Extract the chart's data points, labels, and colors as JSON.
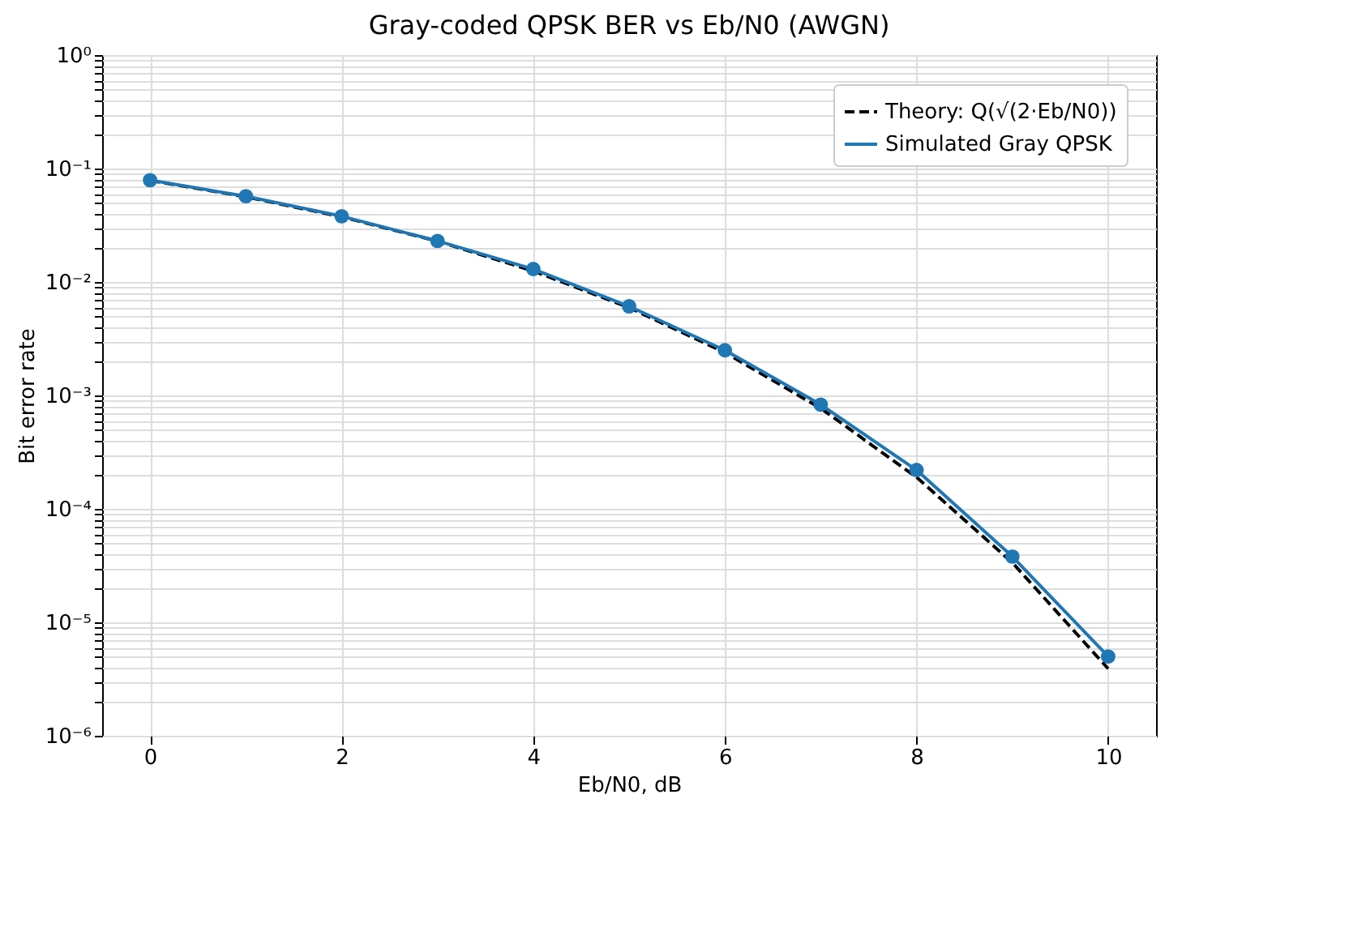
{
  "chart_data": {
    "type": "line",
    "title": "Gray-coded QPSK BER vs Eb/N0 (AWGN)",
    "xlabel": "Eb/N0, dB",
    "ylabel": "Bit error rate",
    "x": [
      0,
      1,
      2,
      3,
      4,
      5,
      6,
      7,
      8,
      9,
      10
    ],
    "series": [
      {
        "name": "Theory: Q(√(2·Eb/N0))",
        "color": "#000000",
        "line_style": "dashed",
        "marker": "none",
        "values": [
          0.0786,
          0.0563,
          0.0375,
          0.0229,
          0.0125,
          0.00595,
          0.00239,
          0.00077,
          0.00019,
          3.36e-05,
          3.9e-06
        ]
      },
      {
        "name": "Simulated Gray QPSK",
        "color": "#1f77b4",
        "line_style": "solid",
        "marker": "circle",
        "values": [
          0.079,
          0.057,
          0.038,
          0.023,
          0.013,
          0.0061,
          0.0025,
          0.00083,
          0.00022,
          3.8e-05,
          5e-06
        ]
      }
    ],
    "log": "y",
    "grid": true,
    "legend": "top right",
    "xlim": [
      -0.5,
      10.5
    ],
    "xticks": [
      0,
      2,
      4,
      6,
      8,
      10
    ],
    "ylim": [
      1e-06,
      1
    ],
    "yticks": [
      {
        "value": 1e-06,
        "label": "10⁻⁶"
      },
      {
        "value": 1e-05,
        "label": "10⁻⁵"
      },
      {
        "value": 0.0001,
        "label": "10⁻⁴"
      },
      {
        "value": 0.001,
        "label": "10⁻³"
      },
      {
        "value": 0.01,
        "label": "10⁻²"
      },
      {
        "value": 0.1,
        "label": "10⁻¹"
      },
      {
        "value": 1,
        "label": "10⁰"
      },
      {
        "value": 2e-06,
        "label": null
      },
      {
        "value": 3e-06,
        "label": null
      },
      {
        "value": 4e-06,
        "label": null
      },
      {
        "value": 5e-06,
        "label": null
      },
      {
        "value": 6e-06,
        "label": null
      },
      {
        "value": 7e-06,
        "label": null
      },
      {
        "value": 8e-06,
        "label": null
      },
      {
        "value": 9e-06,
        "label": null
      },
      {
        "value": 2e-05,
        "label": null
      },
      {
        "value": 3e-05,
        "label": null
      },
      {
        "value": 4e-05,
        "label": null
      },
      {
        "value": 5e-05,
        "label": null
      },
      {
        "value": 6e-05,
        "label": null
      },
      {
        "value": 7e-05,
        "label": null
      },
      {
        "value": 8e-05,
        "label": null
      },
      {
        "value": 9e-05,
        "label": null
      },
      {
        "value": 0.0002,
        "label": null
      },
      {
        "value": 0.0003,
        "label": null
      },
      {
        "value": 0.0004,
        "label": null
      },
      {
        "value": 0.0005,
        "label": null
      },
      {
        "value": 0.0006,
        "label": null
      },
      {
        "value": 0.0007,
        "label": null
      },
      {
        "value": 0.0008,
        "label": null
      },
      {
        "value": 0.0009,
        "label": null
      },
      {
        "value": 0.002,
        "label": null
      },
      {
        "value": 0.003,
        "label": null
      },
      {
        "value": 0.004,
        "label": null
      },
      {
        "value": 0.005,
        "label": null
      },
      {
        "value": 0.006,
        "label": null
      },
      {
        "value": 0.007,
        "label": null
      },
      {
        "value": 0.008,
        "label": null
      },
      {
        "value": 0.009,
        "label": null
      },
      {
        "value": 0.02,
        "label": null
      },
      {
        "value": 0.03,
        "label": null
      },
      {
        "value": 0.04,
        "label": null
      },
      {
        "value": 0.05,
        "label": null
      },
      {
        "value": 0.06,
        "label": null
      },
      {
        "value": 0.07,
        "label": null
      },
      {
        "value": 0.08,
        "label": null
      },
      {
        "value": 0.09,
        "label": null
      },
      {
        "value": 0.2,
        "label": null
      },
      {
        "value": 0.3,
        "label": null
      },
      {
        "value": 0.4,
        "label": null
      },
      {
        "value": 0.5,
        "label": null
      },
      {
        "value": 0.6,
        "label": null
      },
      {
        "value": 0.7,
        "label": null
      },
      {
        "value": 0.8,
        "label": null
      },
      {
        "value": 0.9,
        "label": null
      }
    ]
  }
}
